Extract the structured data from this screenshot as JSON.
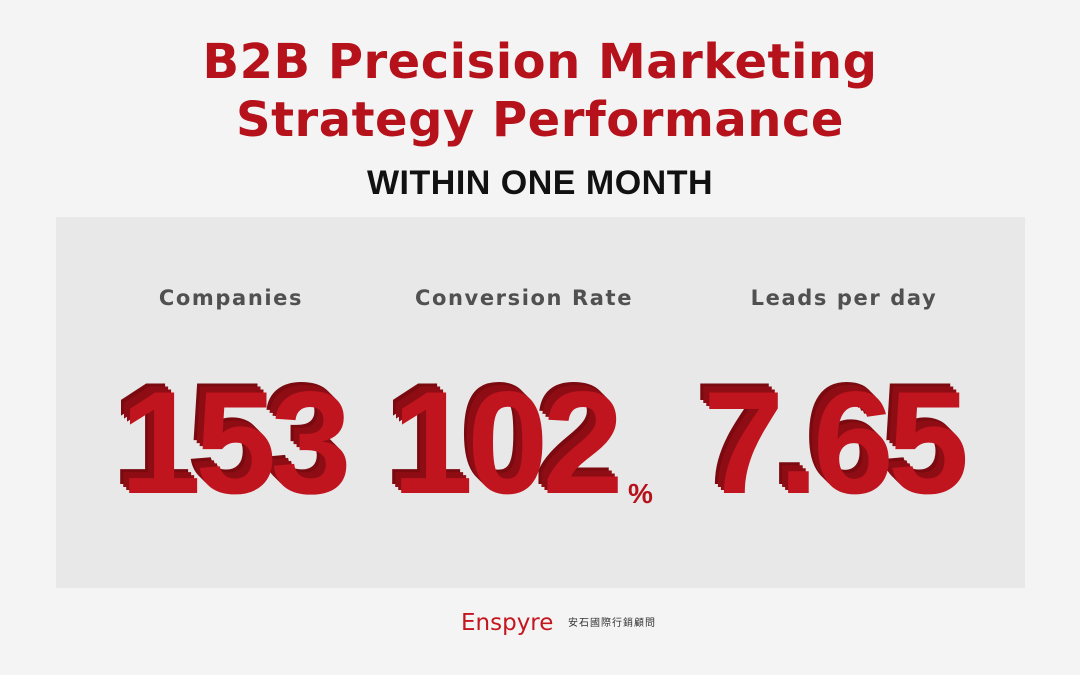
{
  "header": {
    "title_line_1": "B2B Precision Marketing",
    "title_line_2": "Strategy Performance",
    "subtitle": "WITHIN ONE MONTH"
  },
  "stats": [
    {
      "label": "Companies",
      "value": "153",
      "unit": ""
    },
    {
      "label": "Conversion Rate",
      "value": "102",
      "unit": "%"
    },
    {
      "label": "Leads per day",
      "value": "7.65",
      "unit": ""
    }
  ],
  "footer": {
    "brand": "Enspyre",
    "brand_cn": "安石國際行銷顧問"
  },
  "colors": {
    "accent": "#b5121b",
    "background": "#f4f4f4",
    "panel": "#e8e8e8"
  }
}
